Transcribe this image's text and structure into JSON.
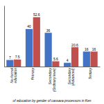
{
  "chart_data": {
    "type": "bar",
    "categories": [
      "No formal\neducation",
      "Primary",
      "Secondary\n(Ordinary level)",
      "Secondary\n(Advanced)",
      "Tertiary"
    ],
    "series": [
      {
        "color": "#4472C4",
        "values": [
          7.0,
          40.0,
          36.0,
          4.0,
          16.0
        ]
      },
      {
        "color": "#C0504D",
        "values": [
          7.5,
          52.6,
          5.6,
          20.6,
          16.0
        ]
      }
    ],
    "ylim": [
      0,
      65
    ],
    "data_labels": true,
    "tick_labels": "x",
    "grid": false,
    "annotations": [
      "of education by gender of cassava processors in Ken"
    ]
  }
}
